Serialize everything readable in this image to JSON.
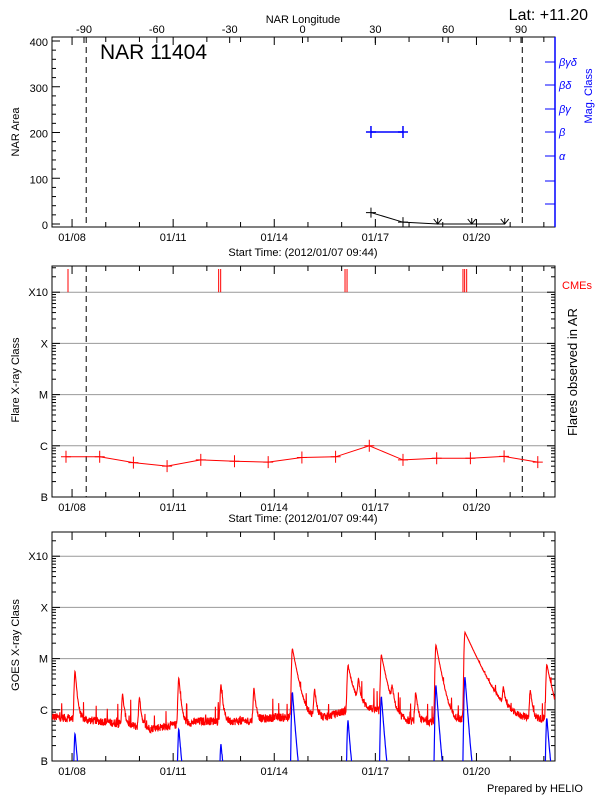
{
  "colors": {
    "axis": "#000000",
    "grid": "#999999",
    "mag_class": "#0000ff",
    "flare": "#ff0000",
    "goes_long": "#ff0000",
    "goes_short": "#0000ff",
    "cme": "#ff0000"
  },
  "footer": "Prepared by HELIO",
  "chart_data": [
    {
      "type": "line",
      "title": "NAR 11404",
      "latitude_label": "Lat: +11.20",
      "top_axis_label": "NAR Longitude",
      "top_ticks": [
        "-90",
        "-60",
        "-30",
        "0",
        "30",
        "60",
        "90"
      ],
      "top_tick_values": [
        -90,
        -60,
        -30,
        0,
        30,
        60,
        90
      ],
      "xlabel": "Start Time: (2012/01/07 09:44)",
      "x_start": "2012-01-07T09:44",
      "x_ticks": [
        "01/08",
        "01/11",
        "01/14",
        "01/17",
        "01/20"
      ],
      "x_tick_days": [
        8,
        11,
        14,
        17,
        20
      ],
      "ylabel": "NAR Area",
      "ylim": [
        0,
        400
      ],
      "y_ticks": [
        "0",
        "100",
        "200",
        "300",
        "400"
      ],
      "y_tick_values": [
        0,
        100,
        200,
        300,
        400
      ],
      "right_axis_label": "Mag. Class",
      "right_ticks": [
        "α",
        "β",
        "βγ",
        "βδ",
        "βγδ"
      ],
      "limb_markers_day": [
        8.42,
        21.36
      ],
      "area_series": {
        "x_day": [
          16.87,
          17.82,
          18.85,
          19.86,
          20.84
        ],
        "values": [
          25,
          4,
          0,
          0,
          0
        ],
        "upper_limit": [
          false,
          false,
          true,
          true,
          true
        ]
      },
      "mag_class_series": {
        "x_day": [
          16.87,
          17.82
        ],
        "class": [
          "β",
          "β"
        ]
      }
    },
    {
      "type": "line",
      "xlabel": "Start Time: (2012/01/07 09:44)",
      "x_ticks": [
        "01/08",
        "01/11",
        "01/14",
        "01/17",
        "01/20"
      ],
      "x_tick_days": [
        8,
        11,
        14,
        17,
        20
      ],
      "ylabel": "Flare X-ray Class",
      "right_axis_label": "Flares observed in AR",
      "y_scale": "log",
      "ylim_wm2": [
        1e-07,
        0.0015
      ],
      "y_ticks": [
        "B",
        "C",
        "M",
        "X",
        "X10"
      ],
      "y_tick_values_wm2": [
        1e-07,
        1e-06,
        1e-05,
        0.0001,
        0.001
      ],
      "grid": true,
      "limb_markers_day": [
        8.42,
        21.36
      ],
      "flare_series": {
        "x_day": [
          7.82,
          8.82,
          9.82,
          10.82,
          11.82,
          12.82,
          13.82,
          14.82,
          15.82,
          16.82,
          17.82,
          18.82,
          19.82,
          20.82,
          21.82
        ],
        "values_wm2": [
          6.1e-07,
          6.1e-07,
          4.7e-07,
          4e-07,
          5.3e-07,
          5e-07,
          4.8e-07,
          5.9e-07,
          6.1e-07,
          1e-06,
          5.3e-07,
          5.7e-07,
          5.7e-07,
          6.2e-07,
          4.8e-07
        ]
      },
      "cme_label": "CMEs",
      "cme_days": [
        7.88,
        12.35,
        12.41,
        16.1,
        16.16,
        19.6,
        19.65,
        19.71
      ]
    },
    {
      "type": "line",
      "xlabel": "",
      "x_ticks": [
        "01/08",
        "01/11",
        "01/14",
        "01/17",
        "01/20"
      ],
      "x_tick_days": [
        8,
        11,
        14,
        17,
        20
      ],
      "ylabel": "GOES X-ray Class",
      "y_scale": "log",
      "ylim_wm2": [
        1e-07,
        0.0015
      ],
      "y_ticks": [
        "B",
        "C",
        "M",
        "X",
        "X10"
      ],
      "y_tick_values_wm2": [
        1e-07,
        1e-06,
        1e-05,
        0.0001,
        0.001
      ],
      "grid": true,
      "long_channel_background": {
        "x_day": [
          7.4,
          9.04,
          10.33,
          11.83,
          13.22,
          14.02,
          15.5,
          16.6,
          18.0,
          19.29,
          21.0,
          22.4
        ],
        "values_wm2": [
          7.3e-07,
          5.8e-07,
          4.3e-07,
          6e-07,
          6e-07,
          7.1e-07,
          7.1e-07,
          1.2e-06,
          6e-07,
          6e-07,
          6.5e-07,
          6.5e-07
        ]
      },
      "long_channel_flares": {
        "x_day": [
          8.09,
          9.5,
          10.0,
          11.17,
          12.42,
          13.4,
          14.54,
          15.2,
          16.19,
          16.5,
          17.18,
          17.5,
          18.2,
          18.8,
          19.66,
          20.8,
          21.6,
          22.09
        ],
        "peak_wm2": [
          5e-06,
          1.5e-06,
          1.3e-06,
          3.7e-06,
          2.5e-06,
          2e-06,
          1.5e-05,
          1.8e-06,
          6.4e-06,
          2.5e-06,
          1.1e-05,
          1.5e-06,
          1.6e-06,
          1.8e-05,
          3.2e-05,
          1.4e-06,
          1.8e-06,
          7e-06
        ]
      },
      "short_channel_flares": {
        "x_day": [
          8.09,
          11.17,
          12.42,
          14.54,
          16.19,
          17.18,
          18.8,
          19.66,
          22.09
        ],
        "peak_wm2": [
          3.2e-07,
          4e-07,
          1.9e-07,
          2.2e-06,
          6e-07,
          1.8e-06,
          3e-06,
          4.4e-06,
          6.7e-07
        ]
      }
    }
  ]
}
